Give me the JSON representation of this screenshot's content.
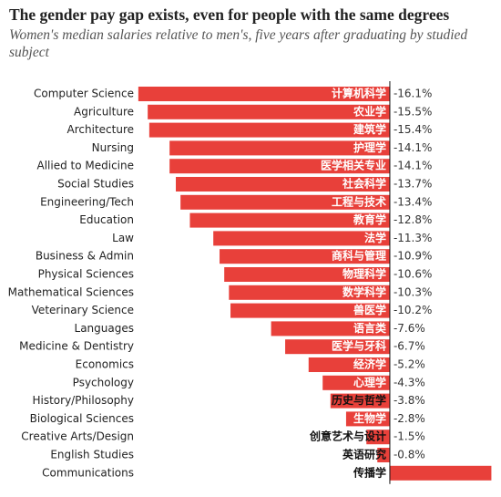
{
  "chart_data": {
    "type": "hbar",
    "title": "The gender pay gap exists, even for people with the same degrees",
    "subtitle": "Women's median salaries relative to men's, five years after graduating by studied subject",
    "categories": [
      "Computer Science",
      "Agriculture",
      "Architecture",
      "Nursing",
      "Allied to Medicine",
      "Social Studies",
      "Engineering/Tech",
      "Education",
      "Law",
      "Business & Admin",
      "Physical Sciences",
      "Mathematical Sciences",
      "Veterinary Science",
      "Languages",
      "Medicine & Dentistry",
      "Economics",
      "Psychology",
      "History/Philosophy",
      "Biological Sciences",
      "Creative Arts/Design",
      "English Studies",
      "Communications"
    ],
    "labels_zh": [
      "计算机科学",
      "农业学",
      "建筑学",
      "护理学",
      "医学相关专业",
      "社会科学",
      "工程与技术",
      "教育学",
      "法学",
      "商科与管理",
      "物理科学",
      "数学科学",
      "兽医学",
      "语言类",
      "医学与牙科",
      "经济学",
      "心理学",
      "历史与哲学",
      "生物学",
      "创意艺术与设计",
      "英语研究",
      "传播学"
    ],
    "values": [
      -16.1,
      -15.5,
      -15.4,
      -14.1,
      -14.1,
      -13.7,
      -13.4,
      -12.8,
      -11.3,
      -10.9,
      -10.6,
      -10.3,
      -10.2,
      -7.6,
      -6.7,
      -5.2,
      -4.3,
      -3.8,
      -2.8,
      -1.5,
      -0.8,
      6.5
    ],
    "value_labels": [
      "-16.1%",
      "-15.5%",
      "-15.4%",
      "-14.1%",
      "-14.1%",
      "-13.7%",
      "-13.4%",
      "-12.8%",
      "-11.3%",
      "-10.9%",
      "-10.6%",
      "-10.3%",
      "-10.2%",
      "-7.6%",
      "-6.7%",
      "-5.2%",
      "-4.3%",
      "-3.8%",
      "-2.8%",
      "-1.5%",
      "-0.8%",
      null
    ],
    "xlim": [
      -16.5,
      7
    ],
    "color": "#e8403a"
  }
}
